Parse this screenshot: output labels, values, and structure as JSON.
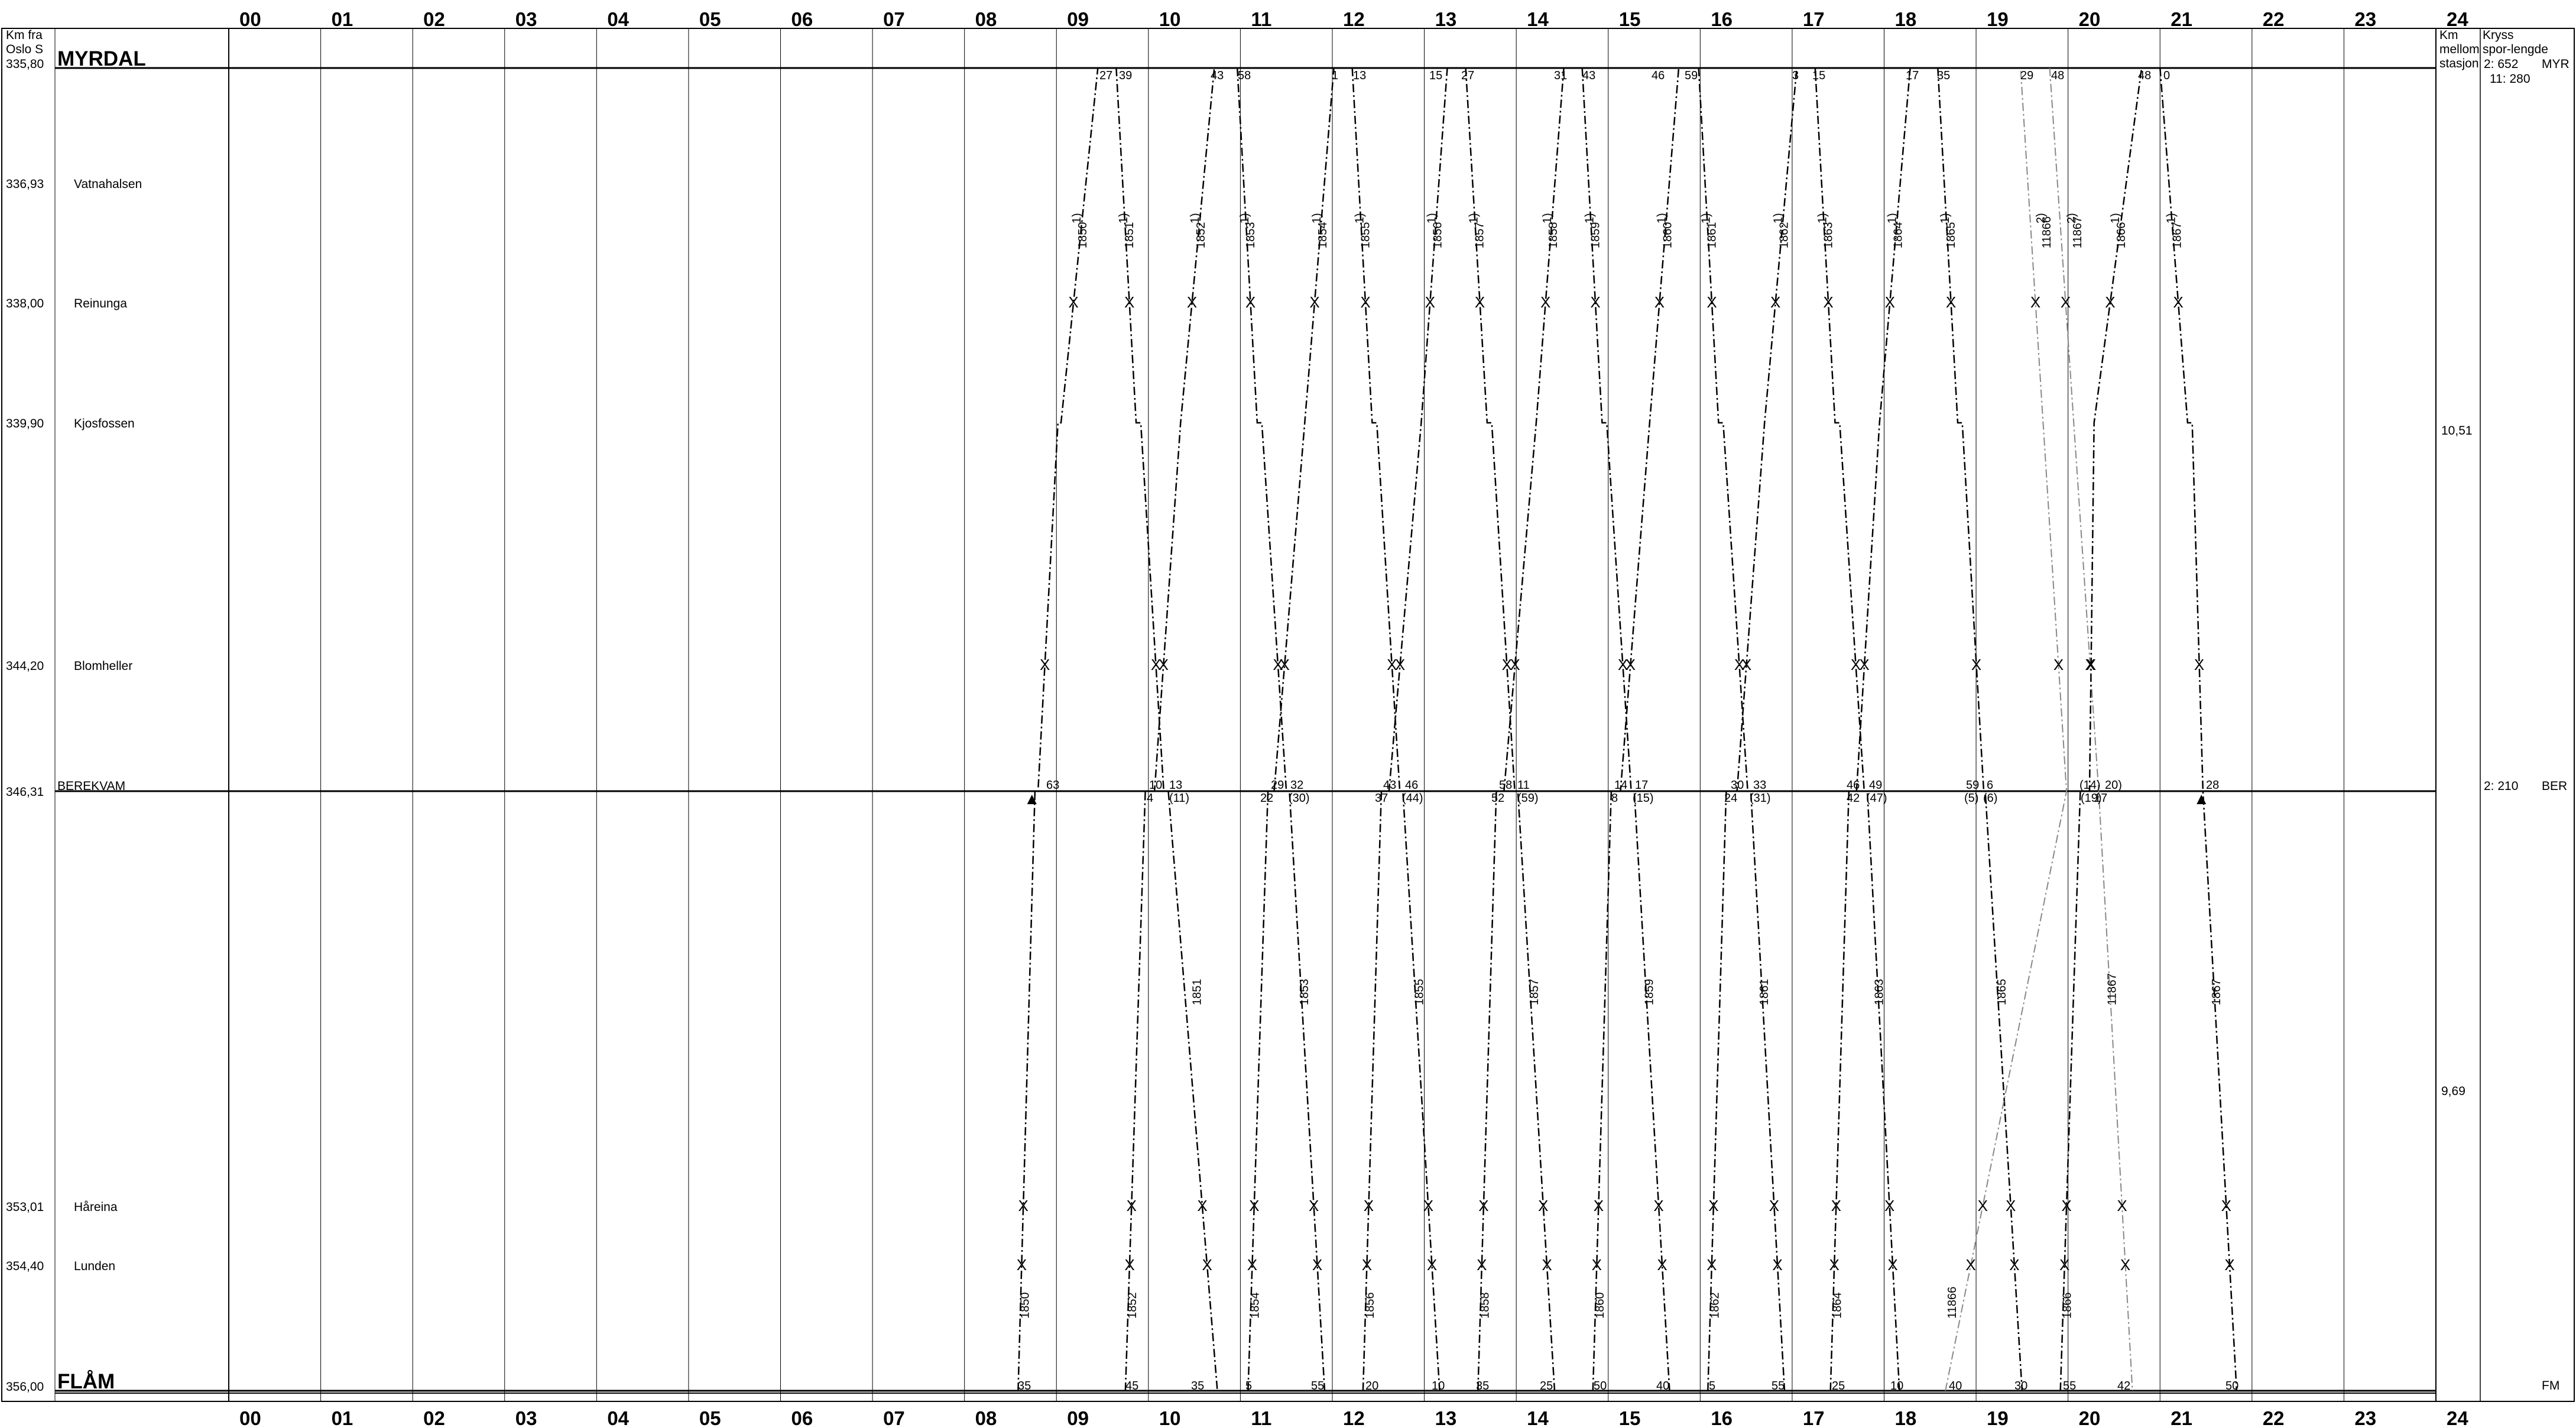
{
  "header": {
    "km_label": [
      "Km fra",
      "Oslo S"
    ],
    "between_label": [
      "Km",
      "mellom",
      "stasjon"
    ],
    "crossing_label": [
      "Kryss",
      "spor-lengde"
    ]
  },
  "hours": [
    "00",
    "01",
    "02",
    "03",
    "04",
    "05",
    "06",
    "07",
    "08",
    "09",
    "10",
    "11",
    "12",
    "13",
    "14",
    "15",
    "16",
    "17",
    "18",
    "19",
    "20",
    "21",
    "22",
    "23",
    "24"
  ],
  "stations": [
    {
      "name": "MYRDAL",
      "km": "335,80",
      "major": true
    },
    {
      "name": "Vatnahalsen",
      "km": "336,93",
      "major": false
    },
    {
      "name": "Reinunga",
      "km": "338,00",
      "major": false
    },
    {
      "name": "Kjosfossen",
      "km": "339,90",
      "major": false
    },
    {
      "name": "Blomheller",
      "km": "344,20",
      "major": false
    },
    {
      "name": "BEREKVAM",
      "km": "346,31",
      "major": false
    },
    {
      "name": "Håreina",
      "km": "353,01",
      "major": false
    },
    {
      "name": "Lunden",
      "km": "354,40",
      "major": false
    },
    {
      "name": "FLÅM",
      "km": "356,00",
      "major": true
    }
  ],
  "section_distances": [
    {
      "value": "10,51",
      "between": [
        "MYRDAL",
        "BEREKVAM"
      ]
    },
    {
      "value": "9,69",
      "between": [
        "BEREKVAM",
        "FLÅM"
      ]
    }
  ],
  "crossing_info": [
    {
      "station": "MYRDAL",
      "tracks": [
        "2: 652",
        "11: 280"
      ],
      "code": "MYR"
    },
    {
      "station": "BEREKVAM",
      "tracks": [
        "2: 210"
      ],
      "code": "BER"
    },
    {
      "station": "FLÅM",
      "tracks": [],
      "code": "FM"
    }
  ],
  "chart_data": {
    "type": "line",
    "x_axis": {
      "unit": "hour",
      "range": [
        0,
        24
      ]
    },
    "y_axis": {
      "unit": "km",
      "range": [
        335.8,
        356.0
      ]
    },
    "series": [
      {
        "name": "1850",
        "direction": "up",
        "times": [
          "08:35",
          "08:46",
          "08:48",
          "09:01",
          "09:03",
          "09:27"
        ]
      },
      {
        "name": "1851",
        "direction": "down",
        "times": [
          "09:39",
          "09:52",
          "10:10",
          "10:13",
          "10:45"
        ]
      },
      {
        "name": "1852",
        "direction": "up",
        "times": [
          "09:45",
          "09:58",
          "10:04",
          "10:21",
          "10:43"
        ]
      },
      {
        "name": "1853",
        "direction": "down",
        "times": [
          "10:58",
          "11:11",
          "11:30",
          "11:32",
          "11:55"
        ]
      },
      {
        "name": "1854",
        "direction": "up",
        "times": [
          "11:05",
          "11:18",
          "11:22",
          "11:42",
          "12:01"
        ]
      },
      {
        "name": "1855",
        "direction": "down",
        "times": [
          "12:13",
          "12:26",
          "12:44",
          "12:46",
          "13:10"
        ]
      },
      {
        "name": "1856",
        "direction": "up",
        "times": [
          "12:20",
          "12:32",
          "12:37",
          "12:58",
          "13:15"
        ]
      },
      {
        "name": "1857",
        "direction": "down",
        "times": [
          "13:27",
          "13:41",
          "13:59",
          "14:01",
          "14:25"
        ]
      },
      {
        "name": "1858",
        "direction": "up",
        "times": [
          "13:35",
          "13:47",
          "13:52",
          "14:13",
          "14:31"
        ]
      },
      {
        "name": "1859",
        "direction": "down",
        "times": [
          "14:43",
          "14:56",
          "15:15",
          "15:17",
          "15:40"
        ]
      },
      {
        "name": "1860",
        "direction": "up",
        "times": [
          "14:50",
          "15:02",
          "15:08",
          "15:27",
          "15:46"
        ]
      },
      {
        "name": "1861",
        "direction": "down",
        "times": [
          "15:59",
          "16:12",
          "16:31",
          "16:33",
          "16:55"
        ]
      },
      {
        "name": "1862",
        "direction": "up",
        "times": [
          "16:05",
          "16:17",
          "16:24",
          "16:42",
          "17:03"
        ]
      },
      {
        "name": "1863",
        "direction": "down",
        "times": [
          "17:15",
          "17:28",
          "17:47",
          "17:49",
          "18:10"
        ]
      },
      {
        "name": "1864",
        "direction": "up",
        "times": [
          "17:25",
          "17:37",
          "17:42",
          "17:57",
          "18:17"
        ]
      },
      {
        "name": "1865",
        "direction": "down",
        "times": [
          "18:35",
          "18:48",
          "19:05",
          "19:06",
          "19:30"
        ]
      },
      {
        "name": "11866",
        "direction": "up",
        "times": [
          "18:40",
          "19:59",
          "19:59",
          "19:29"
        ]
      },
      {
        "name": "11867",
        "direction": "down",
        "times": [
          "19:48",
          "20:20",
          "20:42"
        ]
      },
      {
        "name": "1866",
        "direction": "up",
        "times": [
          "19:55",
          "20:08",
          "20:14",
          "20:17",
          "20:48"
        ]
      },
      {
        "name": "1867",
        "direction": "down",
        "times": [
          "21:00",
          "21:18",
          "21:28",
          "21:50"
        ]
      }
    ]
  },
  "diagram": {
    "train_numbers": {
      "t1850": "1850",
      "t1851": "1851",
      "t1852": "1852",
      "t1853": "1853",
      "t1854": "1854",
      "t1855": "1855",
      "t1856": "1856",
      "t1857": "1857",
      "t1858": "1858",
      "t1859": "1859",
      "t1860": "1860",
      "t1861": "1861",
      "t1862": "1862",
      "t1863": "1863",
      "t1864": "1864",
      "t1865": "1865",
      "t11866": "11866",
      "t11867": "11867",
      "t1866": "1866",
      "t1867": "1867"
    },
    "footnote_1": "1)",
    "footnote_2": "2)",
    "myrdal_minutes": [
      "27",
      "39",
      "43",
      "58",
      "1",
      "13",
      "15",
      "27",
      "31",
      "43",
      "46",
      "59",
      "3",
      "15",
      "17",
      "35",
      "29",
      "48",
      "48",
      "0"
    ],
    "berekvam_minutes": [
      "63",
      "10",
      "(11)",
      "4",
      "13",
      "29",
      "(30)",
      "22",
      "32",
      "43",
      "(44)",
      "37",
      "46",
      "58",
      "(59)",
      "52",
      "11",
      "14",
      "(15)",
      "8",
      "17",
      "30",
      "(31)",
      "24",
      "33",
      "46",
      "(47)",
      "42",
      "49",
      "59",
      "(6)",
      "(5)",
      "6",
      "(14)",
      "17",
      "(19)",
      "20)",
      "28"
    ],
    "flam_minutes": [
      "35",
      "45",
      "35",
      "5",
      "55",
      "20",
      "10",
      "35",
      "25",
      "50",
      "40",
      "5",
      "55",
      "25",
      "10",
      "40",
      "30",
      "55",
      "42",
      "50"
    ]
  }
}
